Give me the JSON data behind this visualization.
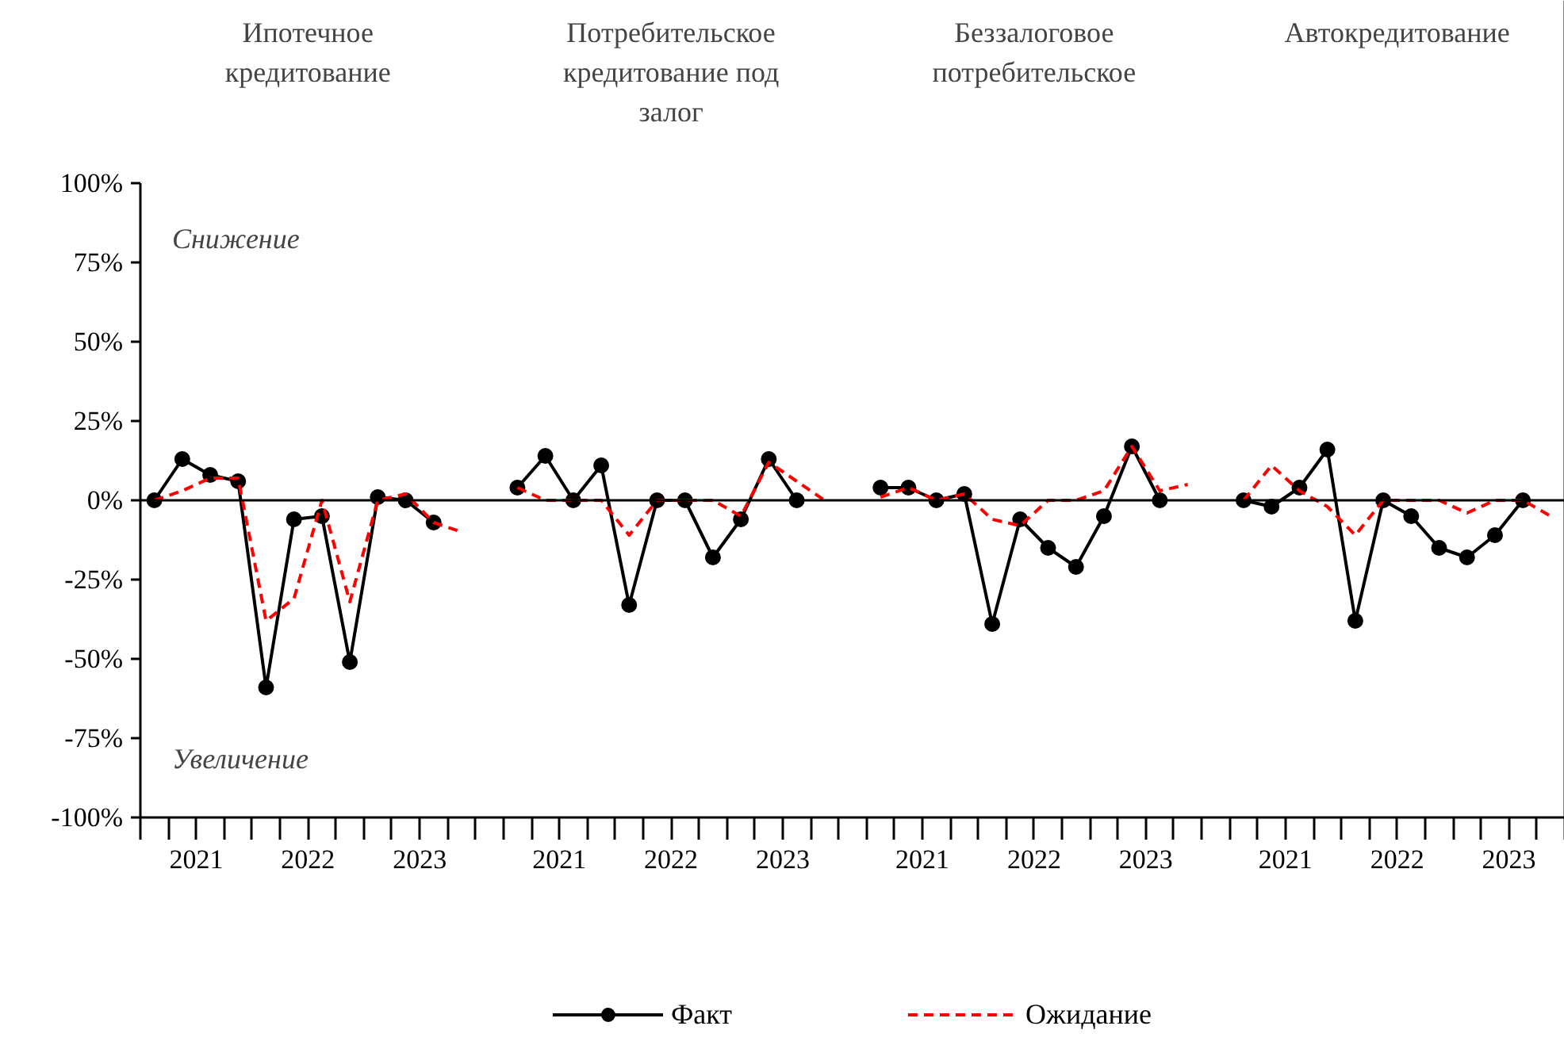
{
  "chart_data": {
    "type": "line",
    "legend": "bottom",
    "tick_labels": "y",
    "annotations": [
      "Ипотечное кредитование",
      "Потребительское кредитование под залог",
      "Беззалоговое потребительское",
      "Автокредитование",
      "Снижение",
      "Увеличение",
      "2021",
      "2022",
      "2023",
      "2021",
      "2022",
      "2023",
      "2021",
      "2022",
      "2023",
      "2021",
      "2022",
      "2023"
    ],
    "ylim": [
      -100,
      100
    ],
    "categories": [
      null,
      null,
      null,
      null,
      null,
      null,
      null,
      null,
      null,
      null,
      null,
      null,
      null,
      null,
      null,
      null,
      null,
      null,
      null,
      null,
      null,
      null,
      null,
      null,
      null,
      null,
      null,
      null,
      null,
      null,
      null,
      null,
      null,
      null,
      null,
      null,
      null,
      null,
      null,
      null,
      null,
      null,
      null,
      null,
      null,
      null,
      null,
      null,
      null,
      null,
      null
    ],
    "yticks": [
      {
        "value": -100,
        "label": "-100%"
      },
      {
        "value": -75,
        "label": "-75%"
      },
      {
        "value": -50,
        "label": "-50%"
      },
      {
        "value": -25,
        "label": "-25%"
      },
      {
        "value": 0,
        "label": "0%"
      },
      {
        "value": 25,
        "label": "25%"
      },
      {
        "value": 50,
        "label": "50%"
      },
      {
        "value": 75,
        "label": "75%"
      },
      {
        "value": 100,
        "label": "100%"
      }
    ],
    "ref_lines": [
      {
        "axis": "y",
        "value": 0,
        "color": "#000000"
      }
    ],
    "series": [
      {
        "name": "Факт",
        "color": "#000000",
        "marker": "circle",
        "line_style": "solid",
        "values": [
          0,
          13,
          8,
          6,
          -59,
          -6,
          -5,
          -51,
          1,
          0,
          -7,
          null,
          null,
          4,
          14,
          0,
          11,
          -33,
          0,
          0,
          -18,
          -6,
          13,
          0,
          null,
          null,
          4,
          4,
          0,
          2,
          -39,
          -6,
          -15,
          -21,
          -5,
          17,
          0,
          null,
          null,
          0,
          -2,
          4,
          16,
          -38,
          0,
          -5,
          -15,
          -18,
          -11,
          0,
          null
        ]
      },
      {
        "name": "Ожидание",
        "color": "#ff0000",
        "marker": "none",
        "line_style": "dashed",
        "values": [
          0,
          3,
          7,
          7,
          -38,
          -31,
          0,
          -32,
          0,
          2,
          -7,
          -10,
          null,
          4,
          0,
          0,
          0,
          -11,
          0,
          0,
          0,
          -5,
          12,
          6,
          0,
          null,
          1,
          4,
          0,
          2,
          -6,
          -8,
          0,
          0,
          3,
          17,
          3,
          5,
          null,
          0,
          11,
          3,
          -2,
          -11,
          0,
          0,
          0,
          -4,
          0,
          0,
          -5
        ]
      }
    ]
  }
}
